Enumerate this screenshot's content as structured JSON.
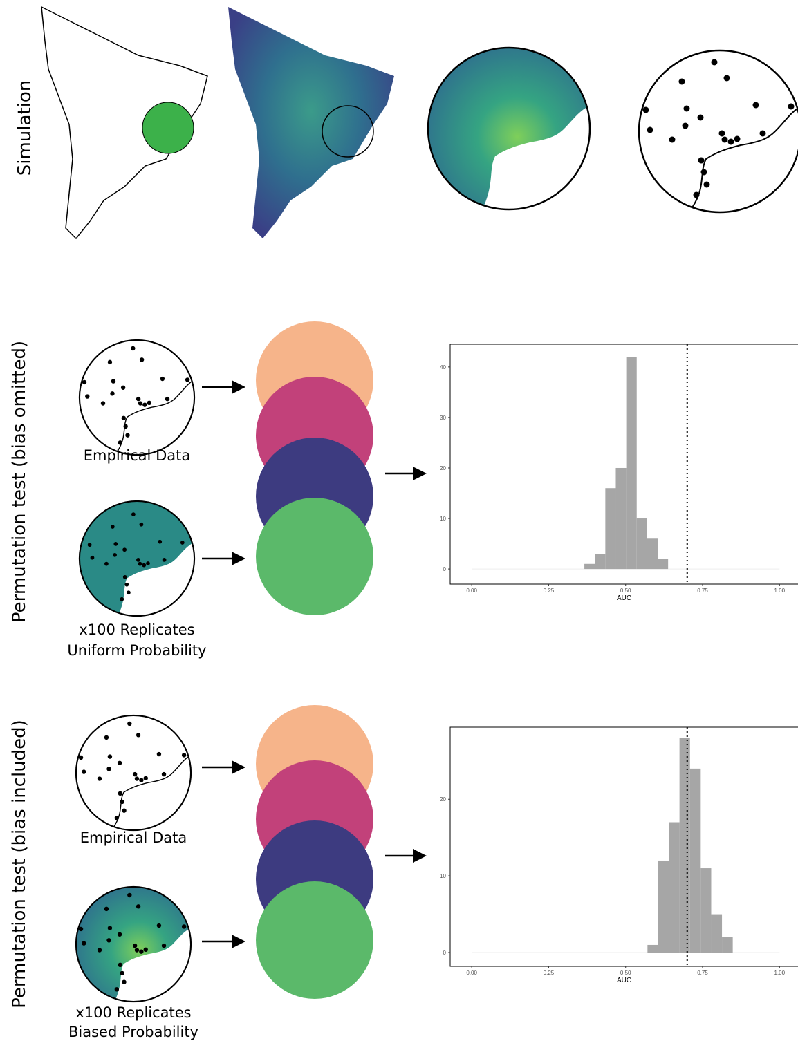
{
  "rows": [
    {
      "label": "Simulation"
    },
    {
      "label": "Permutation test (bias omitted)",
      "top_caption": "Empirical Data",
      "bottom_caption": [
        "x100 Replicates",
        "Uniform Probability"
      ],
      "histogram": {
        "type": "histogram",
        "x_label": "AUC",
        "bins": [
          0.366,
          0.4,
          0.434,
          0.468,
          0.502,
          0.536,
          0.57,
          0.604,
          0.638
        ],
        "counts": [
          1,
          3,
          16,
          20,
          42,
          10,
          6,
          2
        ],
        "color": "#a6a6a6",
        "observed": 0.7,
        "xlim": [
          -0.07,
          1.06
        ],
        "ylim": [
          -3,
          44.5
        ],
        "xticks": [
          {
            "value": 0,
            "label": "0.00"
          },
          {
            "value": 0.25,
            "label": "0.25"
          },
          {
            "value": 0.5,
            "label": "0.50"
          },
          {
            "value": 0.75,
            "label": "0.75"
          },
          {
            "value": 1,
            "label": "1.00"
          }
        ],
        "yticks": [
          0,
          10,
          20,
          30,
          40
        ]
      }
    },
    {
      "label": "Permutation test (bias included)",
      "top_caption": "Empirical Data",
      "bottom_caption": [
        "x100 Replicates",
        "Biased Probability"
      ],
      "histogram": {
        "type": "histogram",
        "x_label": "AUC",
        "bins": [
          0.571,
          0.606,
          0.64,
          0.675,
          0.709,
          0.744,
          0.778,
          0.813,
          0.848
        ],
        "counts": [
          1,
          12,
          17,
          28,
          24,
          11,
          5,
          2
        ],
        "color": "#a6a6a6",
        "observed": 0.7,
        "xlim": [
          -0.07,
          1.06
        ],
        "ylim": [
          -1.8,
          29.4
        ],
        "xticks": [
          {
            "value": 0,
            "label": "0.00"
          },
          {
            "value": 0.25,
            "label": "0.25"
          },
          {
            "value": 0.5,
            "label": "0.50"
          },
          {
            "value": 0.75,
            "label": "0.75"
          },
          {
            "value": 1,
            "label": "1.00"
          }
        ],
        "yticks": [
          0,
          10,
          20
        ]
      }
    }
  ]
}
